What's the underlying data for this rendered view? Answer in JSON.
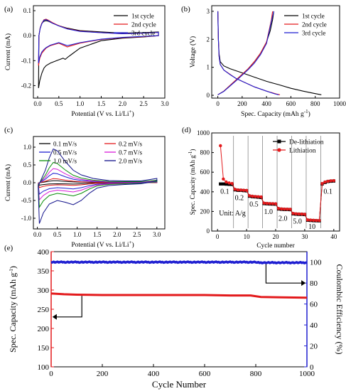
{
  "chart_data": [
    {
      "id": "a",
      "panel_label": "(a)",
      "type": "line",
      "xlabel": "Potential (V vs. Li/Li",
      "xlabel_sup": "+",
      "xlabel_end": ")",
      "ylabel": "Current (mA)",
      "xlim": [
        -0.1,
        3.0
      ],
      "ylim": [
        -0.25,
        0.12
      ],
      "xticks": [
        "0.0",
        "0.5",
        "1.0",
        "1.5",
        "2.0",
        "2.5",
        "3.0"
      ],
      "yticks": [
        "-0.2",
        "-0.1",
        "0.0",
        "0.1"
      ],
      "legend": "top-right",
      "series": [
        {
          "name": "1st cycle",
          "color": "#000000",
          "x": [
            0.02,
            0.05,
            0.1,
            0.15,
            0.2,
            0.3,
            0.45,
            0.6,
            0.65,
            0.72,
            0.8,
            1.0,
            1.5,
            2.0,
            2.5,
            2.85,
            2.85,
            2.5,
            2.0,
            1.5,
            1.0,
            0.7,
            0.5,
            0.35,
            0.25,
            0.2,
            0.15,
            0.1,
            0.06,
            0.03,
            0.02
          ],
          "y": [
            -0.21,
            -0.18,
            -0.15,
            -0.13,
            -0.12,
            -0.11,
            -0.1,
            -0.09,
            -0.095,
            -0.085,
            -0.075,
            -0.05,
            -0.02,
            -0.01,
            -0.005,
            0.0,
            0.015,
            0.012,
            0.01,
            0.015,
            0.02,
            0.03,
            0.04,
            0.05,
            0.058,
            0.06,
            0.058,
            0.05,
            0.03,
            0.0,
            -0.21
          ]
        },
        {
          "name": "2nd cycle",
          "color": "#e31a1c",
          "x": [
            0.02,
            0.05,
            0.1,
            0.15,
            0.2,
            0.3,
            0.5,
            0.7,
            0.8,
            1.0,
            1.5,
            2.0,
            2.5,
            2.85,
            2.85,
            2.5,
            2.0,
            1.5,
            1.0,
            0.7,
            0.5,
            0.35,
            0.25,
            0.2,
            0.15,
            0.1,
            0.06,
            0.03,
            0.02
          ],
          "y": [
            -0.12,
            -0.09,
            -0.07,
            -0.06,
            -0.05,
            -0.04,
            -0.03,
            -0.045,
            -0.04,
            -0.03,
            -0.015,
            -0.008,
            -0.004,
            0.0,
            0.013,
            0.01,
            0.008,
            0.012,
            0.018,
            0.028,
            0.04,
            0.052,
            0.062,
            0.066,
            0.064,
            0.05,
            0.03,
            0.0,
            -0.12
          ]
        },
        {
          "name": "3rd cycle",
          "color": "#1f1fd1",
          "x": [
            0.02,
            0.05,
            0.1,
            0.15,
            0.2,
            0.3,
            0.5,
            0.7,
            0.8,
            1.0,
            1.5,
            2.0,
            2.5,
            2.85,
            2.85,
            2.5,
            2.0,
            1.5,
            1.0,
            0.7,
            0.5,
            0.35,
            0.25,
            0.2,
            0.15,
            0.1,
            0.06,
            0.03,
            0.02
          ],
          "y": [
            -0.11,
            -0.085,
            -0.065,
            -0.055,
            -0.048,
            -0.038,
            -0.028,
            -0.04,
            -0.036,
            -0.028,
            -0.014,
            -0.007,
            -0.003,
            0.0,
            0.013,
            0.01,
            0.008,
            0.012,
            0.017,
            0.027,
            0.039,
            0.05,
            0.06,
            0.064,
            0.062,
            0.048,
            0.028,
            0.0,
            -0.11
          ]
        }
      ]
    },
    {
      "id": "b",
      "panel_label": "(b)",
      "type": "line",
      "xlabel": "Spec. Capacity (mAh g",
      "xlabel_sup": "-1",
      "xlabel_end": ")",
      "ylabel": "Voltage (V)",
      "xlim": [
        -50,
        1000
      ],
      "ylim": [
        -0.1,
        3.2
      ],
      "xticks": [
        "0",
        "200",
        "400",
        "600",
        "800",
        "1000"
      ],
      "yticks": [
        "0",
        "1",
        "2",
        "3"
      ],
      "legend": "top-right",
      "series": [
        {
          "name": "1st cycle",
          "color": "#000000",
          "x": [
            0,
            5,
            10,
            20,
            50,
            100,
            200,
            300,
            400,
            500,
            600,
            700,
            800,
            850
          ],
          "y": [
            3.0,
            2.0,
            1.5,
            1.2,
            1.05,
            0.95,
            0.8,
            0.65,
            0.5,
            0.38,
            0.25,
            0.15,
            0.06,
            0.02
          ],
          "x2": [
            0,
            50,
            100,
            150,
            200,
            250,
            300,
            350,
            400,
            430,
            450,
            460
          ],
          "y2": [
            0.02,
            0.15,
            0.35,
            0.55,
            0.75,
            0.95,
            1.2,
            1.5,
            1.9,
            2.3,
            2.7,
            3.0
          ]
        },
        {
          "name": "2nd cycle",
          "color": "#e31a1c",
          "x": [
            0,
            5,
            10,
            20,
            50,
            100,
            150,
            200,
            300,
            400,
            480,
            510
          ],
          "y": [
            3.0,
            2.0,
            1.4,
            1.1,
            0.9,
            0.75,
            0.6,
            0.5,
            0.3,
            0.15,
            0.05,
            0.02
          ],
          "x2": [
            0,
            50,
            100,
            150,
            200,
            250,
            300,
            350,
            400,
            420,
            440,
            450
          ],
          "y2": [
            0.02,
            0.15,
            0.35,
            0.55,
            0.75,
            0.95,
            1.2,
            1.5,
            1.9,
            2.3,
            2.7,
            3.0
          ]
        },
        {
          "name": "3rd cycle",
          "color": "#1f1fd1",
          "x": [
            0,
            5,
            10,
            20,
            50,
            100,
            150,
            200,
            300,
            400,
            470,
            500
          ],
          "y": [
            3.0,
            2.0,
            1.4,
            1.1,
            0.9,
            0.74,
            0.6,
            0.5,
            0.3,
            0.15,
            0.05,
            0.02
          ],
          "x2": [
            0,
            50,
            100,
            150,
            200,
            250,
            300,
            350,
            400,
            420,
            440,
            460
          ],
          "y2": [
            0.02,
            0.14,
            0.33,
            0.52,
            0.72,
            0.92,
            1.15,
            1.45,
            1.85,
            2.25,
            2.65,
            3.0
          ]
        }
      ]
    },
    {
      "id": "c",
      "panel_label": "(c)",
      "type": "line",
      "xlabel": "Potential (V vs. Li/Li",
      "xlabel_sup": "+",
      "xlabel_end": ")",
      "ylabel": "Current (mA)",
      "xlim": [
        -0.1,
        3.2
      ],
      "ylim": [
        -1.3,
        1.3
      ],
      "xticks": [
        "0.0",
        "0.5",
        "1.0",
        "1.5",
        "2.0",
        "2.5",
        "3.0"
      ],
      "yticks": [
        "-1.0",
        "-0.5",
        "0.0",
        "0.5",
        "1.0"
      ],
      "legend": "top-left",
      "series": [
        {
          "name": "0.1 mV/s",
          "color": "#000000",
          "amp": 0.06
        },
        {
          "name": "0.2 mV/s",
          "color": "#e31a1c",
          "amp": 0.12
        },
        {
          "name": "0.5 mV/s",
          "color": "#1f1fd1",
          "amp": 0.28
        },
        {
          "name": "0.7 mV/s",
          "color": "#d81bd8",
          "amp": 0.42
        },
        {
          "name": "1.0 mV/s",
          "color": "#0a8f0a",
          "amp": 0.6
        },
        {
          "name": "2.0 mV/s",
          "color": "#10108a",
          "amp": 1.0
        }
      ]
    },
    {
      "id": "d",
      "panel_label": "(d)",
      "type": "scatter",
      "xlabel": "Cycle number",
      "ylabel": "Spec. Capacity (mAh g",
      "ylabel_sup": "-1",
      "ylabel_end": ")",
      "xlim": [
        -2,
        42
      ],
      "ylim": [
        0,
        1000
      ],
      "xticks": [
        "0",
        "10",
        "20",
        "30",
        "40"
      ],
      "yticks": [
        "0",
        "200",
        "400",
        "600",
        "800",
        "1000"
      ],
      "legend": "top-right",
      "unit_text": "Unit: A/g",
      "rate_labels": [
        {
          "text": "0.1",
          "x": 2.5,
          "y": 380
        },
        {
          "text": "0.2",
          "x": 7.5,
          "y": 315
        },
        {
          "text": "0.5",
          "x": 12.5,
          "y": 250
        },
        {
          "text": "1.0",
          "x": 17.5,
          "y": 175
        },
        {
          "text": "2.0",
          "x": 22.5,
          "y": 105
        },
        {
          "text": "5.0",
          "x": 27.5,
          "y": 75
        },
        {
          "text": "10",
          "x": 32.5,
          "y": 20
        },
        {
          "text": "0.1",
          "x": 38,
          "y": 380
        }
      ],
      "dividers": [
        5.5,
        10.5,
        15.5,
        20.5,
        25.5,
        30.5,
        35.5
      ],
      "series": [
        {
          "name": "De-lithiation",
          "color": "#000000",
          "marker": "square",
          "x": [
            1,
            2,
            3,
            4,
            5,
            6,
            7,
            8,
            9,
            10,
            11,
            12,
            13,
            14,
            15,
            16,
            17,
            18,
            19,
            20,
            21,
            22,
            23,
            24,
            25,
            26,
            27,
            28,
            29,
            30,
            31,
            32,
            33,
            34,
            35,
            36,
            37,
            38,
            39,
            40
          ],
          "y": [
            480,
            480,
            478,
            476,
            475,
            420,
            415,
            415,
            412,
            410,
            355,
            350,
            348,
            345,
            342,
            280,
            278,
            276,
            275,
            274,
            225,
            222,
            220,
            220,
            218,
            175,
            172,
            170,
            170,
            168,
            110,
            108,
            106,
            105,
            104,
            480,
            495,
            505,
            508,
            510
          ]
        },
        {
          "name": "Lithiation",
          "color": "#e31a1c",
          "marker": "circle",
          "x": [
            1,
            2,
            3,
            4,
            5,
            6,
            7,
            8,
            9,
            10,
            11,
            12,
            13,
            14,
            15,
            16,
            17,
            18,
            19,
            20,
            21,
            22,
            23,
            24,
            25,
            26,
            27,
            28,
            29,
            30,
            31,
            32,
            33,
            34,
            35,
            36,
            37,
            38,
            39,
            40
          ],
          "y": [
            870,
            530,
            500,
            490,
            485,
            425,
            420,
            418,
            416,
            414,
            360,
            355,
            352,
            350,
            348,
            285,
            282,
            280,
            279,
            278,
            230,
            226,
            224,
            223,
            222,
            180,
            176,
            174,
            173,
            172,
            114,
            112,
            110,
            108,
            107,
            485,
            500,
            508,
            512,
            514
          ]
        }
      ]
    },
    {
      "id": "e",
      "panel_label": "(e)",
      "type": "line",
      "xlabel": "Cycle Number",
      "ylabel": "Spec. Capacity (mAh g",
      "ylabel_sup": "-1",
      "ylabel_end": ")",
      "y2label": "Coulombic Efficiency (%)",
      "xlim": [
        0,
        1000
      ],
      "ylim": [
        100,
        400
      ],
      "y2lim": [
        0,
        110
      ],
      "xticks": [
        "0",
        "200",
        "400",
        "600",
        "800",
        "1000"
      ],
      "yticks": [
        "100",
        "150",
        "200",
        "250",
        "300",
        "350",
        "400"
      ],
      "y2ticks": [
        "0",
        "20",
        "40",
        "60",
        "80",
        "100"
      ],
      "series": [
        {
          "name": "Spec. Capacity",
          "color": "#e31a1c",
          "axis": "left",
          "x": [
            1,
            50,
            100,
            200,
            300,
            400,
            500,
            600,
            700,
            780,
            820,
            900,
            1000
          ],
          "y": [
            291,
            289,
            288,
            287,
            287,
            287,
            287,
            287,
            286,
            286,
            282,
            281,
            280
          ]
        },
        {
          "name": "Coulombic Efficiency",
          "color": "#1f1fd1",
          "axis": "right",
          "x": [
            1,
            100,
            200,
            300,
            400,
            500,
            600,
            700,
            800,
            900,
            1000
          ],
          "y": [
            100,
            100,
            100,
            100,
            100,
            100,
            100,
            100,
            99.5,
            99.8,
            99.7
          ]
        }
      ]
    }
  ]
}
